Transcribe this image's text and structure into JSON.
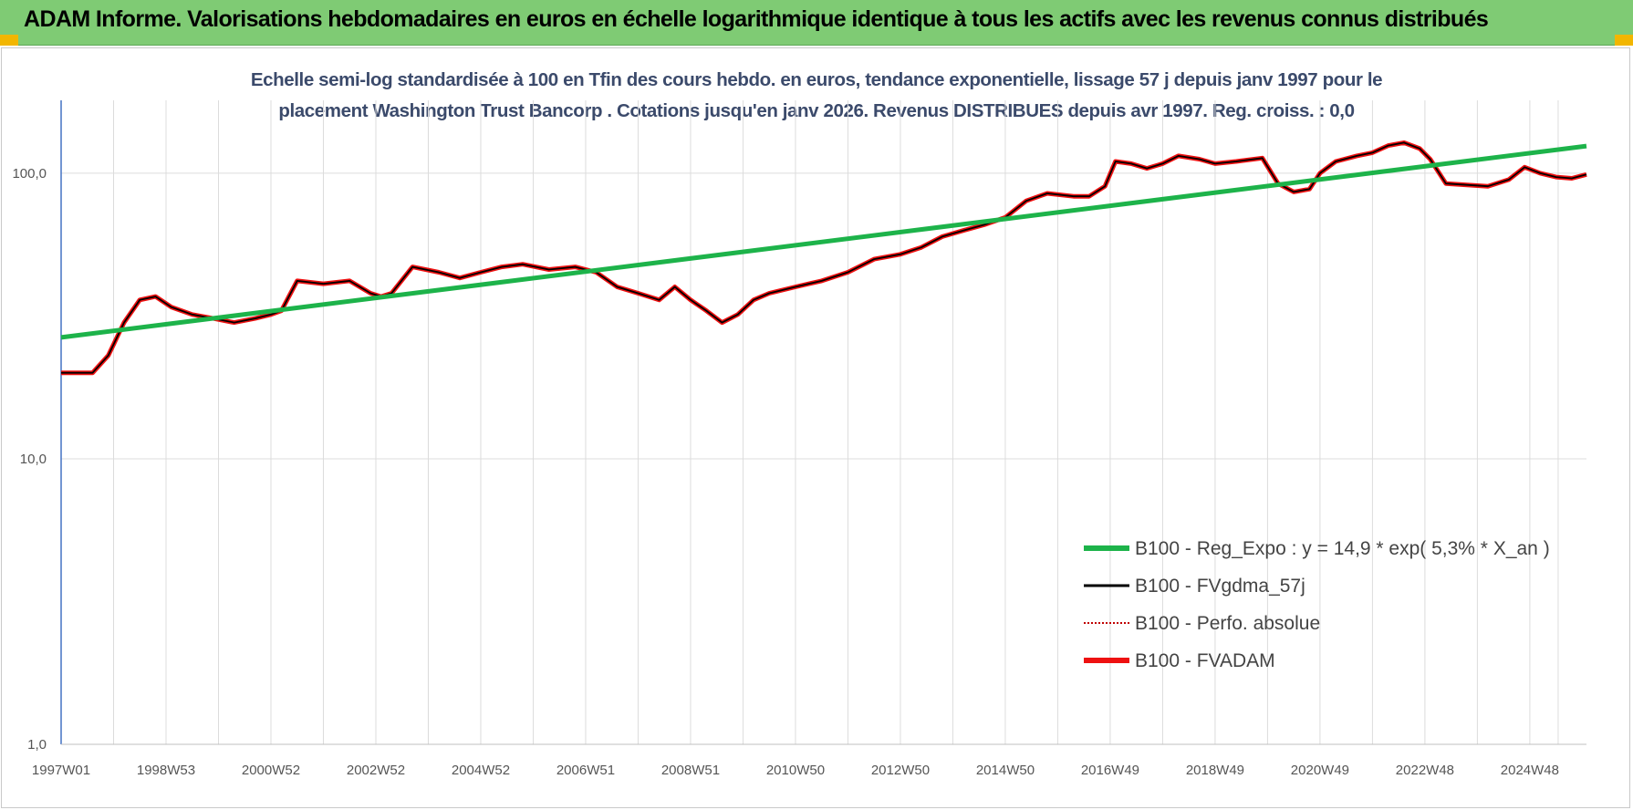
{
  "banner": {
    "title": "ADAM Informe. Valorisations hebdomadaires en euros en échelle logarithmique identique à tous les actifs avec les revenus connus distribués",
    "color": "#7fcb74"
  },
  "chart_data": {
    "type": "line",
    "title_line1": "Echelle semi-log standardisée à 100 en Tfin des cours hebdo. en euros, tendance exponentielle, lissage 57 j depuis janv 1997 pour le",
    "title_line2": "placement Washington Trust Bancorp . Cotations jusqu'en janv 2026. Revenus DISTRIBUES depuis avr 1997. Reg. croiss. : 0,0",
    "y_scale": "log",
    "ylim": [
      1,
      180
    ],
    "y_ticks": [
      1,
      10,
      100
    ],
    "y_tick_labels": [
      "1,0",
      "10,0",
      "100,0"
    ],
    "x_range": [
      1997.0,
      2026.08
    ],
    "x_tick_labels": [
      "1997W01",
      "1998W53",
      "2000W52",
      "2002W52",
      "2004W52",
      "2006W51",
      "2008W51",
      "2010W50",
      "2012W50",
      "2014W50",
      "2016W49",
      "2018W49",
      "2020W49",
      "2022W48",
      "2024W48"
    ],
    "x_tick_positions": [
      1997.0,
      1999.0,
      2001.0,
      2003.0,
      2005.0,
      2007.0,
      2009.0,
      2011.0,
      2013.0,
      2015.0,
      2017.0,
      2019.0,
      2021.0,
      2023.0,
      2025.0
    ],
    "grid": "vertical",
    "legend_position": "bottom-right",
    "series": [
      {
        "name": "B100 - Reg_Expo : y = 14,9 * exp( 5,3% *  X_an )",
        "color": "#1db34a",
        "style": "solid-thick",
        "x": [
          1997.0,
          2026.08
        ],
        "y": [
          26.6,
          124.5
        ]
      },
      {
        "name": "B100 - FVgdma_57j",
        "color": "#000000",
        "style": "solid",
        "x": [
          1997.0,
          1997.3,
          1997.6,
          1997.9,
          1998.2,
          1998.5,
          1998.8,
          1999.1,
          1999.5,
          1999.9,
          2000.3,
          2000.7,
          2001.0,
          2001.2,
          2001.5,
          2002.0,
          2002.5,
          2002.9,
          2003.1,
          2003.3,
          2003.7,
          2004.2,
          2004.6,
          2005.0,
          2005.4,
          2005.8,
          2006.3,
          2006.8,
          2007.2,
          2007.6,
          2008.0,
          2008.4,
          2008.7,
          2009.0,
          2009.3,
          2009.6,
          2009.9,
          2010.2,
          2010.5,
          2011.0,
          2011.5,
          2012.0,
          2012.5,
          2013.0,
          2013.4,
          2013.8,
          2014.2,
          2014.6,
          2015.0,
          2015.4,
          2015.8,
          2016.3,
          2016.6,
          2016.9,
          2017.1,
          2017.4,
          2017.7,
          2018.0,
          2018.3,
          2018.7,
          2019.0,
          2019.4,
          2019.9,
          2020.2,
          2020.5,
          2020.8,
          2021.0,
          2021.3,
          2021.7,
          2022.0,
          2022.3,
          2022.6,
          2022.9,
          2023.1,
          2023.4,
          2023.8,
          2024.2,
          2024.6,
          2024.9,
          2025.2,
          2025.5,
          2025.8,
          2026.08
        ],
        "y": [
          20,
          20,
          20,
          23,
          30,
          36,
          37,
          34,
          32,
          31,
          30,
          31,
          32,
          33,
          42,
          41,
          42,
          38,
          37,
          38,
          47,
          45,
          43,
          45,
          47,
          48,
          46,
          47,
          45,
          40,
          38,
          36,
          40,
          36,
          33,
          30,
          32,
          36,
          38,
          40,
          42,
          45,
          50,
          52,
          55,
          60,
          63,
          66,
          70,
          80,
          85,
          83,
          83,
          90,
          110,
          108,
          104,
          108,
          115,
          112,
          108,
          110,
          113,
          92,
          86,
          88,
          100,
          110,
          115,
          118,
          125,
          128,
          122,
          112,
          92,
          91,
          90,
          95,
          105,
          100,
          97,
          96,
          99
        ]
      },
      {
        "name": "B100 - Perfo. absolue",
        "color": "#c00000",
        "style": "dotted",
        "x": [],
        "y": []
      },
      {
        "name": "B100 - FVADAM",
        "color": "#ee1111",
        "style": "solid-thick",
        "x": [
          1997.0,
          1997.3,
          1997.6,
          1997.9,
          1998.2,
          1998.5,
          1998.8,
          1999.1,
          1999.5,
          1999.9,
          2000.3,
          2000.7,
          2001.0,
          2001.2,
          2001.5,
          2002.0,
          2002.5,
          2002.9,
          2003.1,
          2003.3,
          2003.7,
          2004.2,
          2004.6,
          2005.0,
          2005.4,
          2005.8,
          2006.3,
          2006.8,
          2007.2,
          2007.6,
          2008.0,
          2008.4,
          2008.7,
          2009.0,
          2009.3,
          2009.6,
          2009.9,
          2010.2,
          2010.5,
          2011.0,
          2011.5,
          2012.0,
          2012.5,
          2013.0,
          2013.4,
          2013.8,
          2014.2,
          2014.6,
          2015.0,
          2015.4,
          2015.8,
          2016.3,
          2016.6,
          2016.9,
          2017.1,
          2017.4,
          2017.7,
          2018.0,
          2018.3,
          2018.7,
          2019.0,
          2019.4,
          2019.9,
          2020.2,
          2020.5,
          2020.8,
          2021.0,
          2021.3,
          2021.7,
          2022.0,
          2022.3,
          2022.6,
          2022.9,
          2023.1,
          2023.4,
          2023.8,
          2024.2,
          2024.6,
          2024.9,
          2025.2,
          2025.5,
          2025.8,
          2026.08
        ],
        "y": [
          20,
          20,
          20,
          23,
          30,
          36,
          37,
          34,
          32,
          31,
          30,
          31,
          32,
          33,
          42,
          41,
          42,
          38,
          37,
          38,
          47,
          45,
          43,
          45,
          47,
          48,
          46,
          47,
          45,
          40,
          38,
          36,
          40,
          36,
          33,
          30,
          32,
          36,
          38,
          40,
          42,
          45,
          50,
          52,
          55,
          60,
          63,
          66,
          70,
          80,
          85,
          83,
          83,
          90,
          110,
          108,
          104,
          108,
          115,
          112,
          108,
          110,
          113,
          92,
          86,
          88,
          100,
          110,
          115,
          118,
          125,
          128,
          122,
          112,
          92,
          91,
          90,
          95,
          105,
          100,
          97,
          96,
          99
        ]
      }
    ]
  }
}
